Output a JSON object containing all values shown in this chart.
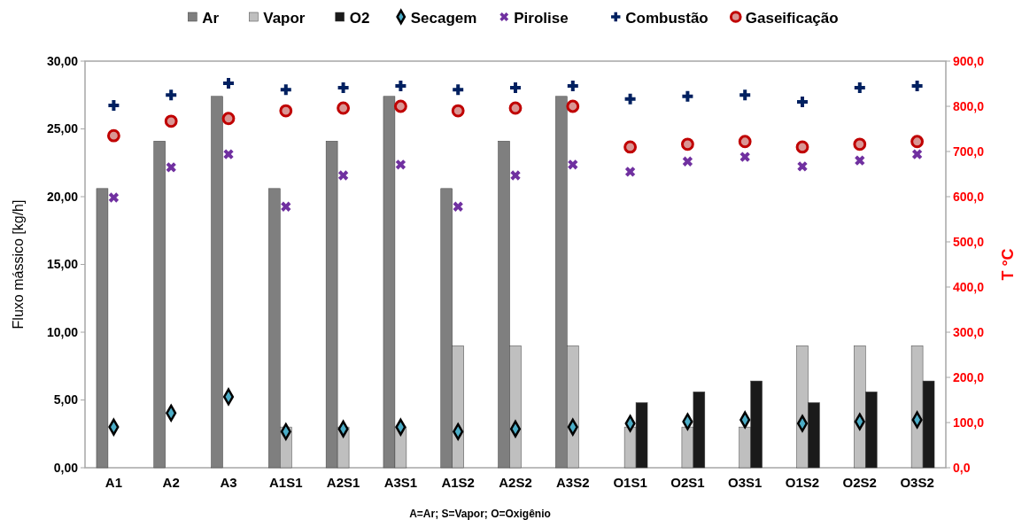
{
  "chart_data": {
    "type": "bar",
    "categories": [
      "A1",
      "A2",
      "A3",
      "A1S1",
      "A2S1",
      "A3S1",
      "A1S2",
      "A2S2",
      "A3S2",
      "O1S1",
      "O2S1",
      "O3S1",
      "O1S2",
      "O2S2",
      "O3S2"
    ],
    "ylabel": "Fluxo mássico [kg/h]",
    "y2label": "T °C",
    "ylim": [
      0,
      30
    ],
    "yticks": [
      {
        "value": 0,
        "label": "0,00"
      },
      {
        "value": 5,
        "label": "5,00"
      },
      {
        "value": 10,
        "label": "10,00"
      },
      {
        "value": 15,
        "label": "15,00"
      },
      {
        "value": 20,
        "label": "20,00"
      },
      {
        "value": 25,
        "label": "25,00"
      },
      {
        "value": 30,
        "label": "30,00"
      }
    ],
    "y2lim": [
      0,
      900
    ],
    "y2ticks": [
      {
        "value": 0,
        "label": "0,0"
      },
      {
        "value": 100,
        "label": "100,0"
      },
      {
        "value": 200,
        "label": "200,0"
      },
      {
        "value": 300,
        "label": "300,0"
      },
      {
        "value": 400,
        "label": "400,0"
      },
      {
        "value": 500,
        "label": "500,0"
      },
      {
        "value": 600,
        "label": "600,0"
      },
      {
        "value": 700,
        "label": "700,0"
      },
      {
        "value": 800,
        "label": "800,0"
      },
      {
        "value": 900,
        "label": "900,0"
      }
    ],
    "legend": "top",
    "grid": false,
    "annotations": [
      "A=Ar;  S=Vapor;  O=Oxigênio"
    ],
    "series": [
      {
        "name": "Ar",
        "color": "#7f7f7f",
        "values": [
          20.6,
          24.1,
          27.4,
          20.6,
          24.1,
          27.4,
          20.6,
          24.1,
          27.4,
          0,
          0,
          0,
          0,
          0,
          0
        ]
      },
      {
        "name": "Vapor",
        "color": "#bfbfbf",
        "values": [
          0,
          0,
          0,
          3.0,
          3.0,
          3.0,
          9.0,
          9.0,
          9.0,
          3.0,
          3.0,
          3.0,
          9.0,
          9.0,
          9.0
        ]
      },
      {
        "name": "O2",
        "color": "#1a1a1a",
        "values": [
          0,
          0,
          0,
          0,
          0,
          0,
          0,
          0,
          0,
          4.8,
          5.6,
          6.4,
          4.8,
          5.6,
          6.4
        ]
      },
      {
        "name": "Secagem",
        "type": "scatter",
        "axis": "y2",
        "marker": "diamond",
        "color": "#000000",
        "values": [
          90,
          121,
          157,
          80,
          86,
          90,
          80,
          86,
          90,
          98,
          102,
          106,
          98,
          102,
          106
        ]
      },
      {
        "name": "Pirolise",
        "type": "scatter",
        "axis": "y2",
        "marker": "cross",
        "color": "#7030a0",
        "values": [
          598,
          665,
          694,
          578,
          647,
          671,
          578,
          647,
          671,
          655,
          678,
          688,
          667,
          680,
          694
        ]
      },
      {
        "name": "Combustão",
        "type": "scatter",
        "axis": "y2",
        "marker": "cross",
        "color": "#002060",
        "values": [
          802,
          825,
          851,
          837,
          841,
          845,
          837,
          841,
          845,
          816,
          822,
          825,
          810,
          841,
          845
        ]
      },
      {
        "name": "Gaseificação",
        "type": "scatter",
        "axis": "y2",
        "marker": "circle",
        "color": "#c00000",
        "values": [
          735,
          767,
          773,
          790,
          796,
          800,
          790,
          796,
          800,
          710,
          716,
          722,
          710,
          716,
          722
        ]
      }
    ]
  }
}
